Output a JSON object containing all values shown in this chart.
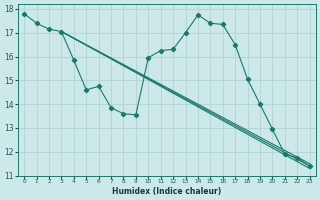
{
  "xlabel": "Humidex (Indice chaleur)",
  "bg_color": "#cce8e8",
  "line_color": "#1a7a6a",
  "grid_color": "#aacfcf",
  "xlim": [
    -0.5,
    23.5
  ],
  "ylim": [
    11,
    18.2
  ],
  "yticks": [
    11,
    12,
    13,
    14,
    15,
    16,
    17,
    18
  ],
  "xticks": [
    0,
    1,
    2,
    3,
    4,
    5,
    6,
    7,
    8,
    9,
    10,
    11,
    12,
    13,
    14,
    15,
    16,
    17,
    18,
    19,
    20,
    21,
    22,
    23
  ],
  "main_line": {
    "x": [
      0,
      1,
      2,
      3,
      4,
      5,
      6,
      7,
      8,
      9,
      10,
      11,
      12,
      13,
      14,
      15,
      16,
      17,
      18,
      19,
      20,
      21,
      22,
      23
    ],
    "y": [
      17.8,
      17.4,
      17.15,
      17.05,
      15.85,
      14.6,
      14.75,
      13.85,
      13.6,
      13.55,
      15.95,
      16.25,
      16.3,
      17.0,
      17.75,
      17.4,
      17.35,
      16.5,
      15.05,
      14.0,
      12.95,
      11.9,
      11.75,
      11.4
    ]
  },
  "straight_lines": [
    {
      "x": [
        3,
        23
      ],
      "y": [
        17.05,
        11.5
      ]
    },
    {
      "x": [
        3,
        23
      ],
      "y": [
        17.05,
        11.4
      ]
    },
    {
      "x": [
        3,
        23
      ],
      "y": [
        17.05,
        11.3
      ]
    }
  ]
}
